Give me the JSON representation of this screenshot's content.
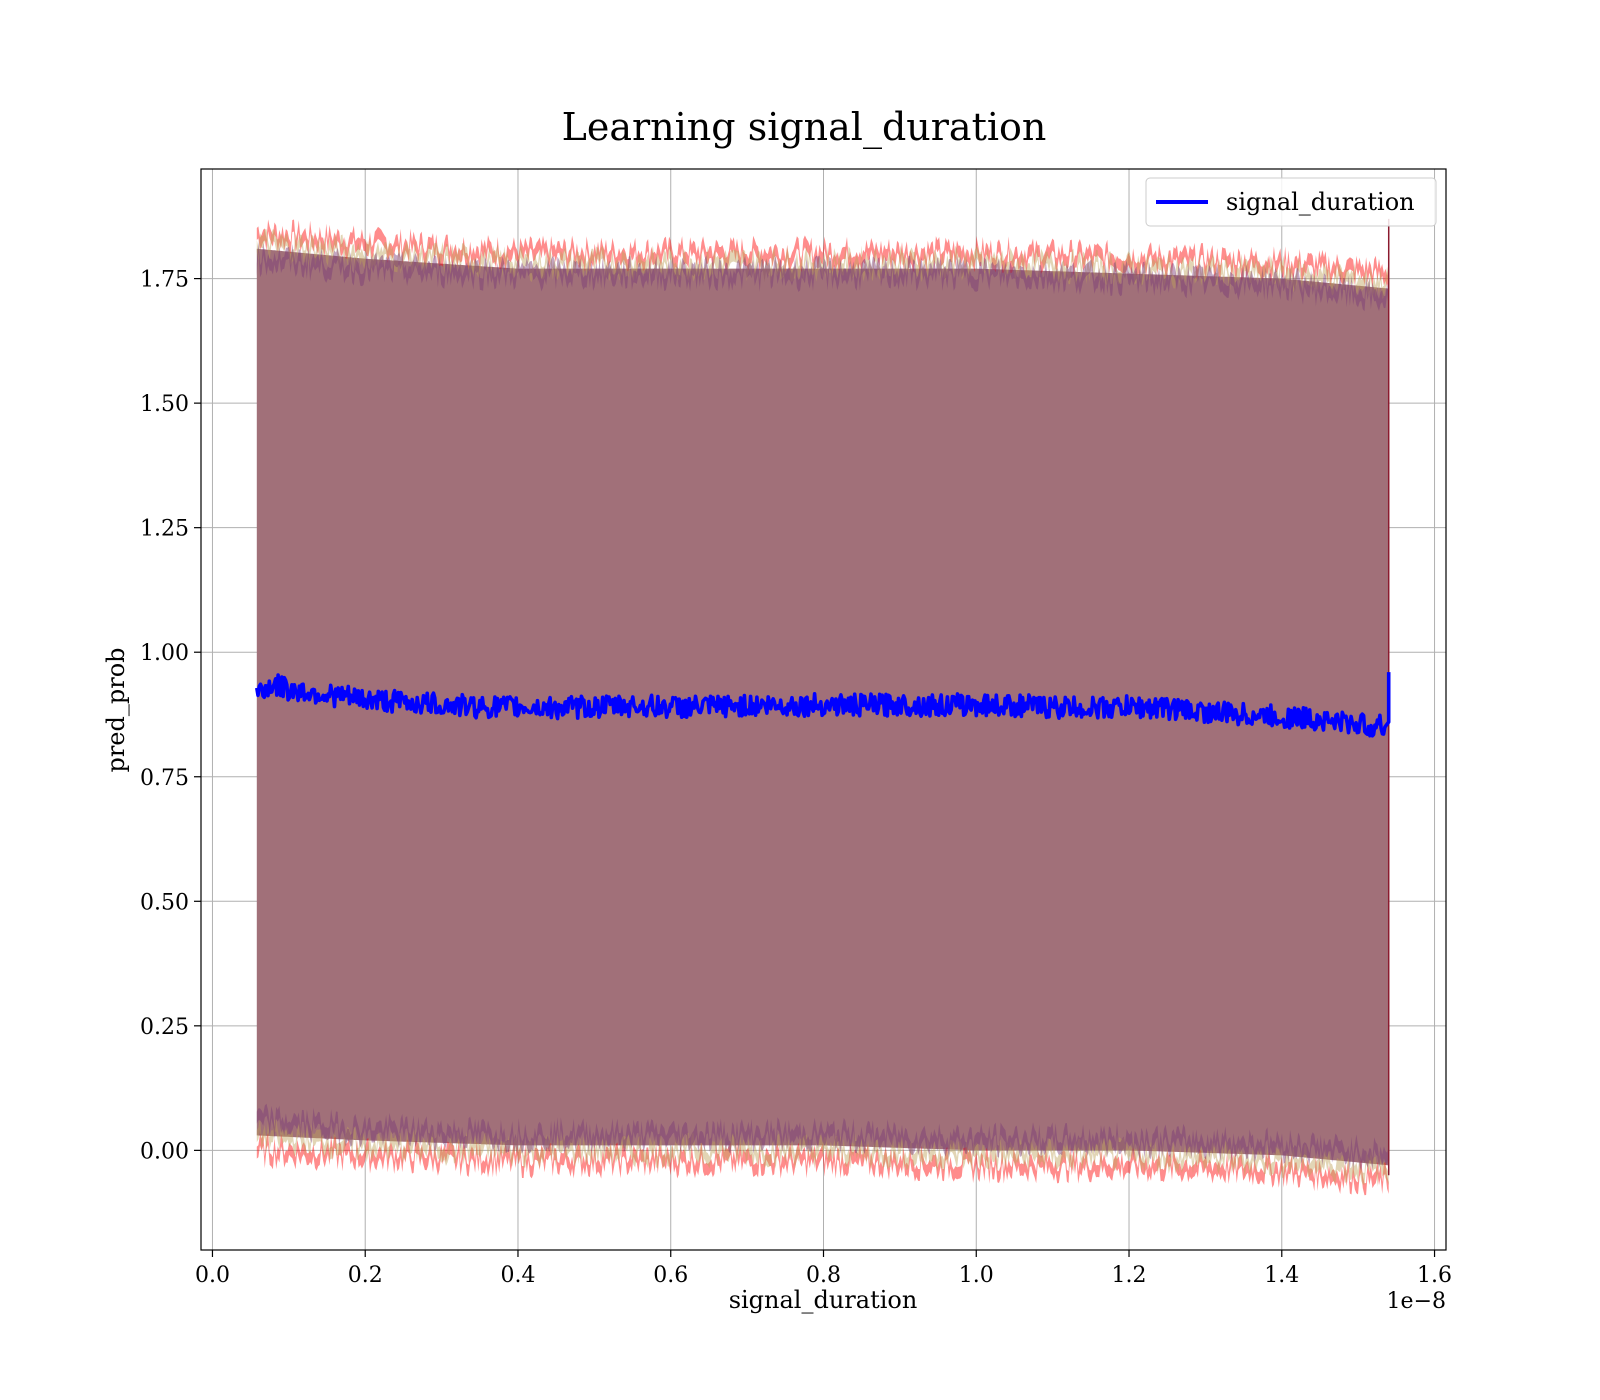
{
  "chart_data": {
    "type": "line",
    "title": "Learning signal_duration",
    "xlabel": "signal_duration",
    "ylabel": "pred_prob",
    "x_offset_text": "1e−8",
    "xlim": [
      -0.015,
      1.615
    ],
    "ylim": [
      -0.2,
      1.97
    ],
    "x_ticks": [
      0.0,
      0.2,
      0.4,
      0.6,
      0.8,
      1.0,
      1.2,
      1.4,
      1.6
    ],
    "x_tick_labels": [
      "0.0",
      "0.2",
      "0.4",
      "0.6",
      "0.8",
      "1.0",
      "1.2",
      "1.4",
      "1.6"
    ],
    "y_ticks": [
      0.0,
      0.25,
      0.5,
      0.75,
      1.0,
      1.25,
      1.5,
      1.75
    ],
    "y_tick_labels": [
      "0.00",
      "0.25",
      "0.50",
      "0.75",
      "1.00",
      "1.25",
      "1.50",
      "1.75"
    ],
    "grid": true,
    "legend_position": "top-right",
    "series": [
      {
        "name": "signal_duration",
        "color": "#0000ff",
        "x": [
          0.058,
          0.08,
          0.1,
          0.15,
          0.2,
          0.25,
          0.3,
          0.35,
          0.4,
          0.45,
          0.5,
          0.55,
          0.6,
          0.65,
          0.7,
          0.75,
          0.8,
          0.85,
          0.9,
          0.95,
          1.0,
          1.05,
          1.1,
          1.15,
          1.2,
          1.25,
          1.3,
          1.35,
          1.4,
          1.45,
          1.5,
          1.535,
          1.54
        ],
        "y": [
          0.92,
          0.935,
          0.925,
          0.915,
          0.905,
          0.9,
          0.895,
          0.89,
          0.89,
          0.888,
          0.89,
          0.893,
          0.89,
          0.89,
          0.893,
          0.893,
          0.895,
          0.893,
          0.895,
          0.893,
          0.895,
          0.893,
          0.89,
          0.888,
          0.89,
          0.888,
          0.88,
          0.875,
          0.87,
          0.865,
          0.855,
          0.85,
          0.96
        ]
      }
    ],
    "bands": [
      {
        "upper_color": "#ff0000",
        "fill_color": "#8b1a2e",
        "x": [
          0.058,
          0.2,
          0.4,
          0.6,
          0.8,
          1.0,
          1.2,
          1.4,
          1.54
        ],
        "upper": [
          1.84,
          1.82,
          1.8,
          1.8,
          1.8,
          1.8,
          1.79,
          1.78,
          1.76
        ],
        "lower": [
          0.0,
          -0.01,
          -0.02,
          -0.02,
          -0.02,
          -0.03,
          -0.03,
          -0.04,
          -0.06
        ]
      },
      {
        "upper_color": "#bfa15a",
        "fill_color": "#8b1a2e",
        "x": [
          0.058,
          0.2,
          0.4,
          0.6,
          0.8,
          1.0,
          1.2,
          1.4,
          1.54
        ],
        "upper": [
          1.82,
          1.8,
          1.78,
          1.78,
          1.78,
          1.78,
          1.77,
          1.76,
          1.74
        ],
        "lower": [
          0.03,
          0.01,
          0.0,
          0.0,
          0.0,
          -0.01,
          -0.01,
          -0.02,
          -0.04
        ]
      },
      {
        "upper_color": "#7a3a78",
        "fill_color": "#8b1a2e",
        "x": [
          0.058,
          0.2,
          0.4,
          0.6,
          0.8,
          1.0,
          1.2,
          1.4,
          1.54
        ],
        "upper": [
          1.79,
          1.77,
          1.76,
          1.76,
          1.76,
          1.76,
          1.75,
          1.74,
          1.71
        ],
        "lower": [
          0.06,
          0.04,
          0.03,
          0.03,
          0.03,
          0.02,
          0.02,
          0.01,
          -0.01
        ]
      }
    ],
    "band_fill_color": "#a17079"
  }
}
